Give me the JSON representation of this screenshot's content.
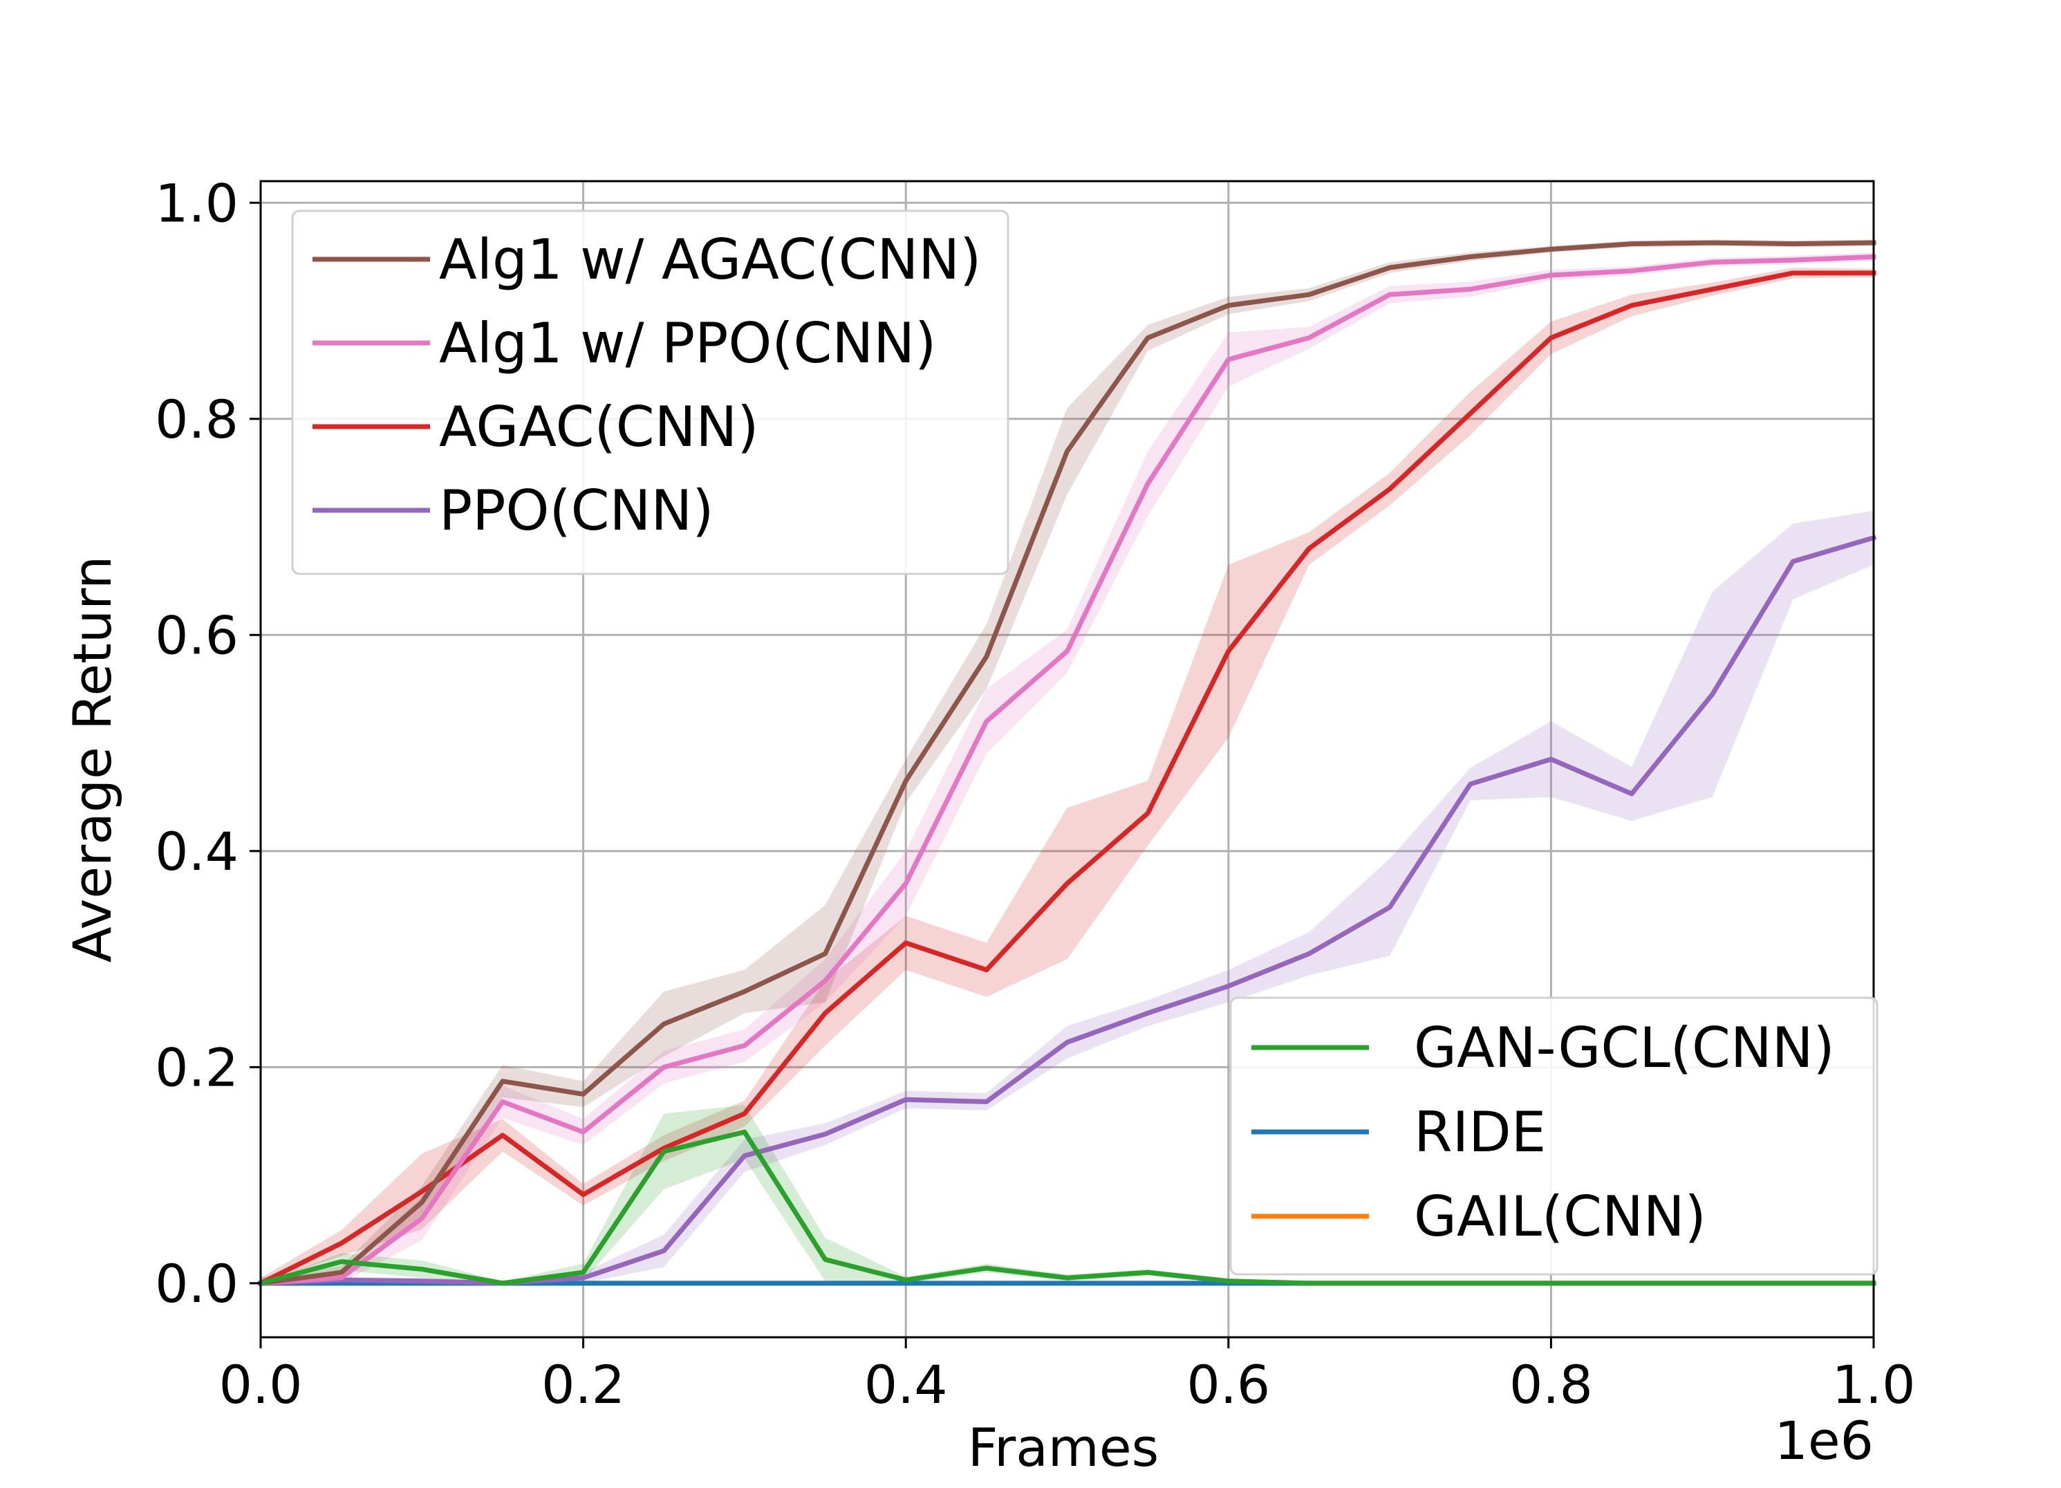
{
  "chart_data": {
    "type": "line",
    "title": "",
    "xlabel": "Frames",
    "ylabel": "Average Return",
    "x_offset_label": "1e6",
    "xlim": [
      0,
      1.0
    ],
    "ylim": [
      -0.05,
      1.02
    ],
    "xticks": [
      "0.0",
      "0.2",
      "0.4",
      "0.6",
      "0.8",
      "1.0"
    ],
    "xtick_values": [
      0,
      0.2,
      0.4,
      0.6,
      0.8,
      1.0
    ],
    "yticks": [
      "0.0",
      "0.2",
      "0.4",
      "0.6",
      "0.8",
      "1.0"
    ],
    "ytick_values": [
      0,
      0.2,
      0.4,
      0.6,
      0.8,
      1.0
    ],
    "grid": true,
    "x": [
      0,
      0.05,
      0.1,
      0.15,
      0.2,
      0.25,
      0.3,
      0.35,
      0.4,
      0.45,
      0.5,
      0.55,
      0.6,
      0.65,
      0.7,
      0.75,
      0.8,
      0.85,
      0.9,
      0.95,
      1.0
    ],
    "series": [
      {
        "name": "Alg1 w/ AGAC(CNN)",
        "color": "#8c564b",
        "values": [
          0.0,
          0.01,
          0.075,
          0.187,
          0.175,
          0.24,
          0.27,
          0.305,
          0.465,
          0.58,
          0.77,
          0.875,
          0.905,
          0.915,
          0.94,
          0.95,
          0.957,
          0.962,
          0.963,
          0.962,
          0.963
        ],
        "band": [
          0.006,
          0.006,
          0.015,
          0.015,
          0.012,
          0.03,
          0.02,
          0.045,
          0.02,
          0.03,
          0.04,
          0.012,
          0.008,
          0.006,
          0.005,
          0.004,
          0.003,
          0.003,
          0.003,
          0.003,
          0.003
        ]
      },
      {
        "name": "Alg1 w/ PPO(CNN)",
        "color": "#e377c2",
        "values": [
          0.0,
          0.005,
          0.06,
          0.168,
          0.14,
          0.2,
          0.22,
          0.28,
          0.37,
          0.52,
          0.585,
          0.74,
          0.855,
          0.875,
          0.915,
          0.92,
          0.933,
          0.937,
          0.945,
          0.947,
          0.95
        ],
        "band": [
          0.005,
          0.005,
          0.02,
          0.015,
          0.012,
          0.015,
          0.015,
          0.02,
          0.03,
          0.03,
          0.02,
          0.03,
          0.025,
          0.01,
          0.008,
          0.007,
          0.005,
          0.004,
          0.004,
          0.004,
          0.004
        ]
      },
      {
        "name": "AGAC(CNN)",
        "color": "#d62728",
        "values": [
          0.0,
          0.037,
          0.085,
          0.137,
          0.082,
          0.125,
          0.157,
          0.25,
          0.315,
          0.29,
          0.37,
          0.435,
          0.585,
          0.68,
          0.735,
          0.805,
          0.875,
          0.905,
          0.92,
          0.935,
          0.935
        ],
        "band": [
          0.005,
          0.012,
          0.035,
          0.015,
          0.01,
          0.012,
          0.012,
          0.03,
          0.025,
          0.025,
          0.07,
          0.03,
          0.08,
          0.015,
          0.015,
          0.02,
          0.015,
          0.01,
          0.006,
          0.005,
          0.004
        ]
      },
      {
        "name": "PPO(CNN)",
        "color": "#9467bd",
        "values": [
          0.0,
          0.003,
          0.002,
          0.0,
          0.005,
          0.03,
          0.118,
          0.138,
          0.17,
          0.168,
          0.223,
          0.25,
          0.275,
          0.305,
          0.348,
          0.462,
          0.485,
          0.453,
          0.545,
          0.668,
          0.69
        ],
        "band": [
          0.002,
          0.003,
          0.003,
          0.002,
          0.005,
          0.015,
          0.015,
          0.01,
          0.008,
          0.008,
          0.015,
          0.012,
          0.015,
          0.02,
          0.045,
          0.015,
          0.035,
          0.025,
          0.095,
          0.035,
          0.025
        ]
      },
      {
        "name": "GAN-GCL(CNN)",
        "color": "#2ca02c",
        "values": [
          0.0,
          0.02,
          0.013,
          0.0,
          0.01,
          0.122,
          0.14,
          0.022,
          0.003,
          0.014,
          0.005,
          0.01,
          0.002,
          0.0,
          0.0,
          0.0,
          0.0,
          0.0,
          0.0,
          0.0,
          0.0
        ],
        "band": [
          0.0,
          0.008,
          0.008,
          0.002,
          0.008,
          0.035,
          0.025,
          0.02,
          0.003,
          0.004,
          0.003,
          0.003,
          0.002,
          0.0,
          0.0,
          0.0,
          0.0,
          0.0,
          0.0,
          0.0,
          0.0
        ]
      },
      {
        "name": "RIDE",
        "color": "#1f77b4",
        "values": [
          0.0,
          0.0,
          0.0,
          0.0,
          0.0,
          0.0,
          0.0,
          0.0,
          0.0,
          0.0,
          0.0,
          0.0,
          0.0,
          0.0,
          0.0,
          0.0,
          0.0,
          0.0,
          0.0,
          0.0,
          0.0
        ],
        "band": [
          0,
          0,
          0,
          0,
          0,
          0,
          0,
          0,
          0,
          0,
          0,
          0,
          0,
          0,
          0,
          0,
          0,
          0,
          0,
          0,
          0
        ]
      },
      {
        "name": "GAIL(CNN)",
        "color": "#ff7f0e",
        "values": [
          0.0,
          0.0,
          0.0,
          0.0,
          0.0,
          0.0,
          0.0,
          0.0,
          0.0,
          0.0,
          0.0,
          0.0,
          0.0,
          0.0,
          0.0,
          0.0,
          0.0,
          0.0,
          0.0,
          0.0,
          0.0
        ],
        "band": [
          0,
          0,
          0,
          0,
          0,
          0,
          0,
          0,
          0,
          0,
          0,
          0,
          0,
          0,
          0,
          0,
          0,
          0,
          0,
          0,
          0
        ]
      }
    ],
    "legends": [
      {
        "placement": "upper-left",
        "entries": [
          "Alg1 w/ AGAC(CNN)",
          "Alg1 w/ PPO(CNN)",
          "AGAC(CNN)",
          "PPO(CNN)"
        ]
      },
      {
        "placement": "lower-right",
        "entries": [
          "GAN-GCL(CNN)",
          "RIDE",
          "GAIL(CNN)"
        ]
      }
    ]
  }
}
